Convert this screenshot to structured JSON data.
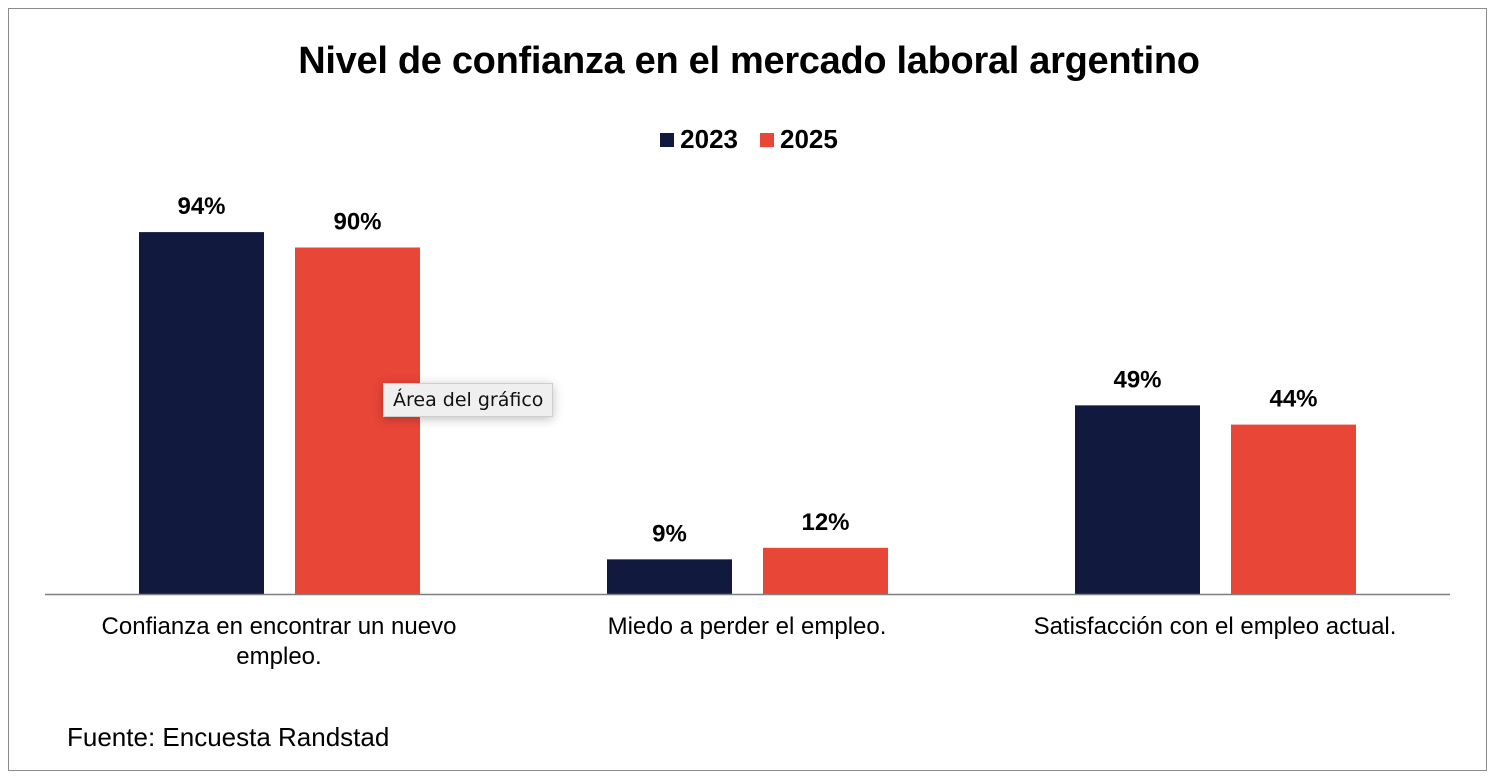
{
  "chart_data": {
    "type": "bar",
    "title": "Nivel de confianza en el mercado laboral argentino",
    "categories": [
      "Confianza en encontrar un nuevo empleo.",
      "Miedo a perder el empleo.",
      "Satisfacción con el empleo actual."
    ],
    "series": [
      {
        "name": "2023",
        "values": [
          94,
          9,
          49
        ],
        "labels": [
          "94%",
          "9%",
          "49%"
        ],
        "color": "#11193f"
      },
      {
        "name": "2025",
        "values": [
          90,
          12,
          44
        ],
        "labels": [
          "90%",
          "12%",
          "44%"
        ],
        "color": "#e84637"
      }
    ],
    "ylim": [
      0,
      100
    ],
    "grid": false,
    "legend_position": "top",
    "yaxis_visible": false
  },
  "source": "Fuente: Encuesta Randstad",
  "tooltip": "Área del gráfico"
}
